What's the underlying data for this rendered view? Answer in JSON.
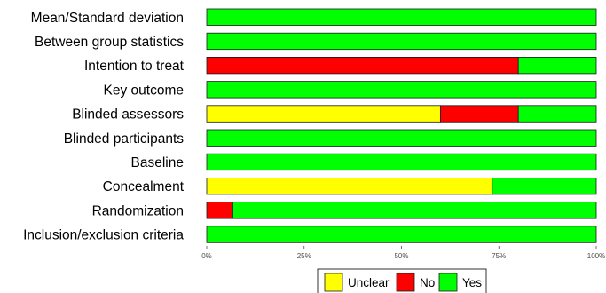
{
  "chart_data": {
    "type": "bar",
    "orientation": "horizontal",
    "stacked": true,
    "title": "",
    "xlabel": "",
    "ylabel": "",
    "xlim": [
      0,
      100
    ],
    "x_ticks": [
      "0%",
      "25%",
      "50%",
      "75%",
      "100%"
    ],
    "grid": false,
    "legend_position": "bottom",
    "categories": [
      "Mean/Standard deviation",
      "Between group statistics",
      "Intention to treat",
      "Key outcome",
      "Blinded assessors",
      "Blinded participants",
      "Baseline",
      "Concealment",
      "Randomization",
      "Inclusion/exclusion criteria"
    ],
    "series": [
      {
        "name": "Unclear",
        "color": "#ffff00",
        "values": [
          0,
          0,
          0,
          0,
          60,
          0,
          0,
          73.3,
          0,
          0
        ]
      },
      {
        "name": "No",
        "color": "#ff0000",
        "values": [
          0,
          0,
          80,
          0,
          20,
          0,
          0,
          0,
          6.7,
          0
        ]
      },
      {
        "name": "Yes",
        "color": "#00ff00",
        "values": [
          100,
          100,
          20,
          100,
          20,
          100,
          100,
          26.7,
          93.3,
          100
        ]
      }
    ]
  }
}
